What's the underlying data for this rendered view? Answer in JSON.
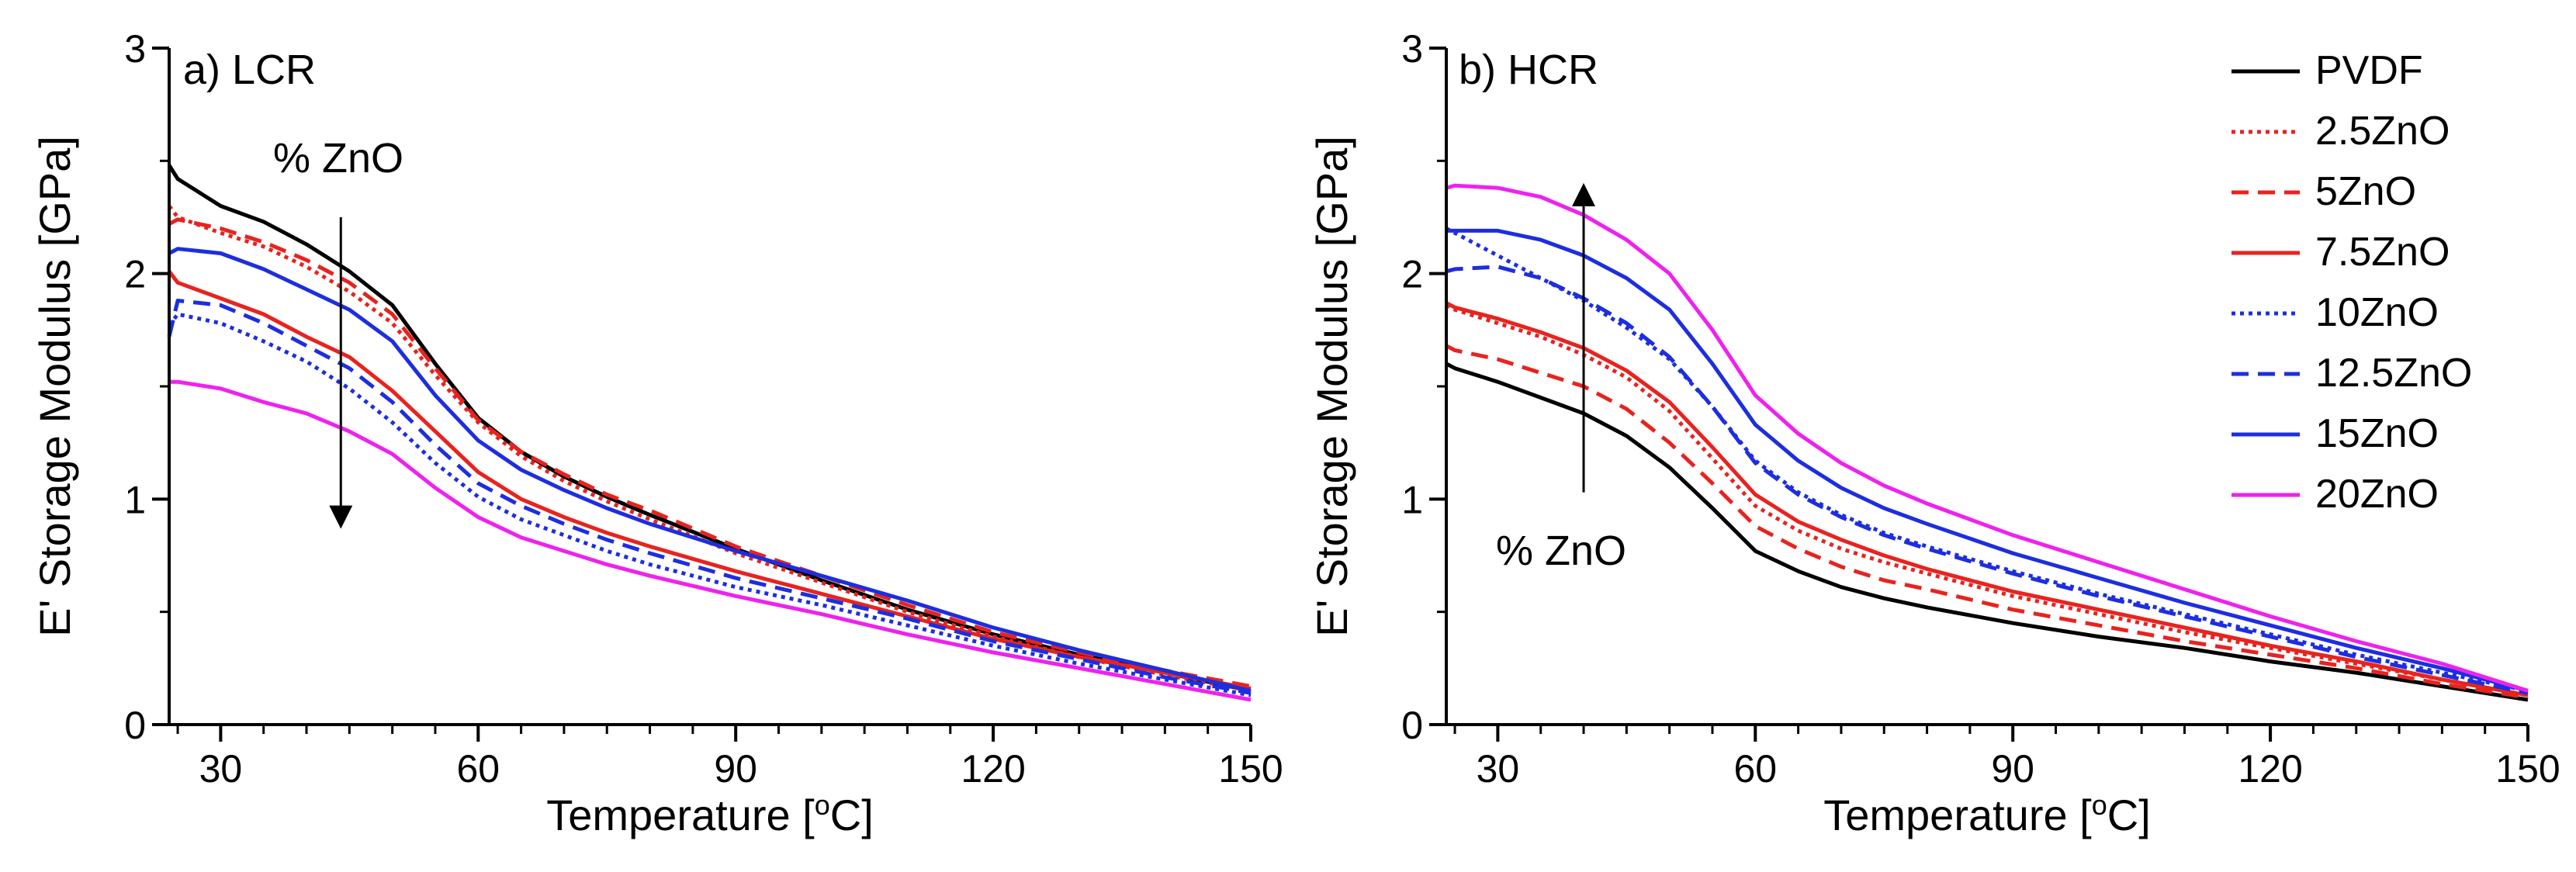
{
  "colors": {
    "PVDF": "#000000",
    "2.5ZnO": "#e8231f",
    "5ZnO": "#e8231f",
    "7.5ZnO": "#e8231f",
    "10ZnO": "#1d2ee0",
    "12.5ZnO": "#1d2ee0",
    "15ZnO": "#1d2ee0",
    "20ZnO": "#ee22ee"
  },
  "dash": {
    "PVDF": "solid",
    "2.5ZnO": "dotted",
    "5ZnO": "dashed",
    "7.5ZnO": "solid",
    "10ZnO": "dotted",
    "12.5ZnO": "dashed",
    "15ZnO": "solid",
    "20ZnO": "solid"
  },
  "legend": {
    "placement": "top-right",
    "entries": [
      "PVDF",
      "2.5ZnO",
      "5ZnO",
      "7.5ZnO",
      "10ZnO",
      "12.5ZnO",
      "15ZnO",
      "20ZnO"
    ]
  },
  "chart_data": [
    {
      "type": "line",
      "title": "a) LCR",
      "xlabel": "Temperature [",
      "xlabel_sup": "o",
      "xlabel_suffix": "C]",
      "ylabel": "E' Storage Modulus [GPa]",
      "xlim": [
        24,
        150
      ],
      "ylim": [
        0,
        3
      ],
      "xticks": [
        30,
        60,
        90,
        120,
        150
      ],
      "yticks": [
        0,
        1,
        2,
        3
      ],
      "annotation": {
        "text": "% ZnO",
        "arrow_x": 44,
        "arrow_from": 2.25,
        "arrow_to": 0.92
      },
      "x": [
        24,
        25,
        30,
        35,
        40,
        45,
        50,
        55,
        60,
        65,
        70,
        75,
        80,
        90,
        100,
        110,
        120,
        130,
        140,
        150
      ],
      "series": [
        {
          "name": "PVDF",
          "values": [
            2.48,
            2.42,
            2.3,
            2.23,
            2.13,
            2.01,
            1.86,
            1.6,
            1.36,
            1.21,
            1.1,
            1.01,
            0.93,
            0.78,
            0.64,
            0.51,
            0.4,
            0.31,
            0.23,
            0.15
          ]
        },
        {
          "name": "2.5ZnO",
          "values": [
            2.3,
            2.25,
            2.18,
            2.12,
            2.03,
            1.92,
            1.78,
            1.55,
            1.34,
            1.19,
            1.08,
            0.99,
            0.91,
            0.76,
            0.63,
            0.5,
            0.39,
            0.3,
            0.22,
            0.15
          ]
        },
        {
          "name": "5ZnO",
          "values": [
            2.22,
            2.24,
            2.2,
            2.14,
            2.06,
            1.96,
            1.82,
            1.58,
            1.35,
            1.21,
            1.11,
            1.02,
            0.95,
            0.79,
            0.66,
            0.53,
            0.41,
            0.32,
            0.24,
            0.17
          ]
        },
        {
          "name": "7.5ZnO",
          "values": [
            2.01,
            1.96,
            1.89,
            1.82,
            1.72,
            1.63,
            1.48,
            1.3,
            1.12,
            1.0,
            0.92,
            0.85,
            0.79,
            0.68,
            0.58,
            0.48,
            0.38,
            0.3,
            0.23,
            0.16
          ]
        },
        {
          "name": "10ZnO",
          "values": [
            1.77,
            1.82,
            1.78,
            1.7,
            1.61,
            1.49,
            1.34,
            1.16,
            1.01,
            0.91,
            0.84,
            0.77,
            0.71,
            0.61,
            0.53,
            0.44,
            0.35,
            0.27,
            0.2,
            0.13
          ]
        },
        {
          "name": "12.5ZnO",
          "values": [
            1.72,
            1.88,
            1.86,
            1.78,
            1.68,
            1.58,
            1.43,
            1.24,
            1.07,
            0.97,
            0.89,
            0.82,
            0.76,
            0.65,
            0.56,
            0.47,
            0.37,
            0.29,
            0.21,
            0.14
          ]
        },
        {
          "name": "15ZnO",
          "values": [
            2.09,
            2.11,
            2.09,
            2.02,
            1.93,
            1.84,
            1.7,
            1.46,
            1.26,
            1.13,
            1.04,
            0.96,
            0.89,
            0.77,
            0.66,
            0.55,
            0.43,
            0.33,
            0.24,
            0.15
          ]
        },
        {
          "name": "20ZnO",
          "values": [
            1.52,
            1.52,
            1.49,
            1.43,
            1.38,
            1.3,
            1.2,
            1.05,
            0.92,
            0.83,
            0.77,
            0.71,
            0.66,
            0.57,
            0.49,
            0.4,
            0.32,
            0.25,
            0.18,
            0.11
          ]
        }
      ]
    },
    {
      "type": "line",
      "title": "b) HCR",
      "xlabel": "Temperature [",
      "xlabel_sup": "o",
      "xlabel_suffix": "C]",
      "ylabel": "E' Storage Modulus [GPa]",
      "xlim": [
        24,
        150
      ],
      "ylim": [
        0,
        3
      ],
      "xticks": [
        30,
        60,
        90,
        120,
        150
      ],
      "yticks": [
        0,
        1,
        2,
        3
      ],
      "annotation": {
        "text": "% ZnO",
        "arrow_x": 40,
        "arrow_from": 1.03,
        "arrow_to": 2.35
      },
      "x": [
        24,
        25,
        30,
        35,
        40,
        45,
        50,
        55,
        60,
        65,
        70,
        75,
        80,
        90,
        100,
        110,
        120,
        130,
        140,
        150
      ],
      "series": [
        {
          "name": "PVDF",
          "values": [
            1.6,
            1.58,
            1.52,
            1.45,
            1.38,
            1.28,
            1.14,
            0.96,
            0.77,
            0.68,
            0.61,
            0.56,
            0.52,
            0.45,
            0.39,
            0.34,
            0.28,
            0.23,
            0.17,
            0.11
          ]
        },
        {
          "name": "2.5ZnO",
          "values": [
            1.86,
            1.84,
            1.78,
            1.72,
            1.64,
            1.54,
            1.39,
            1.18,
            0.97,
            0.86,
            0.78,
            0.72,
            0.67,
            0.57,
            0.49,
            0.41,
            0.34,
            0.27,
            0.2,
            0.13
          ]
        },
        {
          "name": "5ZnO",
          "values": [
            1.68,
            1.66,
            1.62,
            1.56,
            1.5,
            1.4,
            1.25,
            1.07,
            0.88,
            0.78,
            0.7,
            0.64,
            0.6,
            0.51,
            0.44,
            0.37,
            0.31,
            0.25,
            0.18,
            0.12
          ]
        },
        {
          "name": "7.5ZnO",
          "values": [
            1.87,
            1.85,
            1.8,
            1.74,
            1.67,
            1.57,
            1.43,
            1.23,
            1.02,
            0.9,
            0.82,
            0.75,
            0.69,
            0.59,
            0.51,
            0.43,
            0.35,
            0.28,
            0.2,
            0.13
          ]
        },
        {
          "name": "10ZnO",
          "values": [
            2.2,
            2.18,
            2.08,
            1.98,
            1.88,
            1.76,
            1.62,
            1.41,
            1.17,
            1.03,
            0.93,
            0.85,
            0.79,
            0.68,
            0.58,
            0.49,
            0.4,
            0.31,
            0.23,
            0.15
          ]
        },
        {
          "name": "12.5ZnO",
          "values": [
            2.01,
            2.02,
            2.03,
            1.98,
            1.89,
            1.78,
            1.63,
            1.41,
            1.16,
            1.02,
            0.92,
            0.84,
            0.78,
            0.67,
            0.57,
            0.48,
            0.39,
            0.3,
            0.22,
            0.14
          ]
        },
        {
          "name": "15ZnO",
          "values": [
            2.19,
            2.19,
            2.19,
            2.15,
            2.08,
            1.98,
            1.84,
            1.6,
            1.33,
            1.17,
            1.05,
            0.96,
            0.89,
            0.76,
            0.65,
            0.54,
            0.44,
            0.34,
            0.25,
            0.15
          ]
        },
        {
          "name": "20ZnO",
          "values": [
            2.38,
            2.39,
            2.38,
            2.34,
            2.26,
            2.15,
            2.0,
            1.75,
            1.46,
            1.29,
            1.16,
            1.06,
            0.98,
            0.84,
            0.72,
            0.6,
            0.48,
            0.37,
            0.27,
            0.15
          ]
        }
      ]
    }
  ]
}
